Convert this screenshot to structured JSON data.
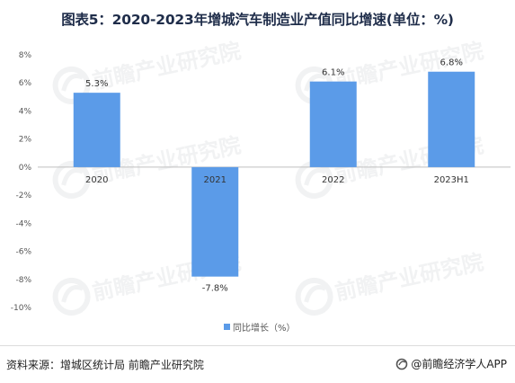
{
  "title": "图表5：2020-2023年增城汽车制造业产值同比增速(单位：%)",
  "watermark": "前瞻产业研究院",
  "footer": {
    "source": "资料来源：增城区统计局 前瞻产业研究院",
    "brand": "@前瞻经济学人APP",
    "brand_icon": "qianzhan-logo-icon"
  },
  "colors": {
    "bar": "#5b9be8",
    "axis": "#bfbfbf",
    "watermark": "#9aa0a6"
  },
  "chart_data": {
    "type": "bar",
    "categories": [
      "2020",
      "2021",
      "2022",
      "2023H1"
    ],
    "series": [
      {
        "name": "同比增长（%）",
        "values": [
          5.3,
          -7.8,
          6.1,
          6.8
        ],
        "labels": [
          "5.3%",
          "-7.8%",
          "6.1%",
          "6.8%"
        ]
      }
    ],
    "yticks": [
      8,
      6,
      4,
      2,
      0,
      -2,
      -4,
      -6,
      -8,
      -10
    ],
    "ytick_labels": [
      "8%",
      "6%",
      "4%",
      "2%",
      "0%",
      "-2%",
      "-4%",
      "-6%",
      "-8%",
      "-10%"
    ],
    "ylim": [
      -10,
      8
    ],
    "grid": false,
    "legend_position": "bottom-center"
  }
}
